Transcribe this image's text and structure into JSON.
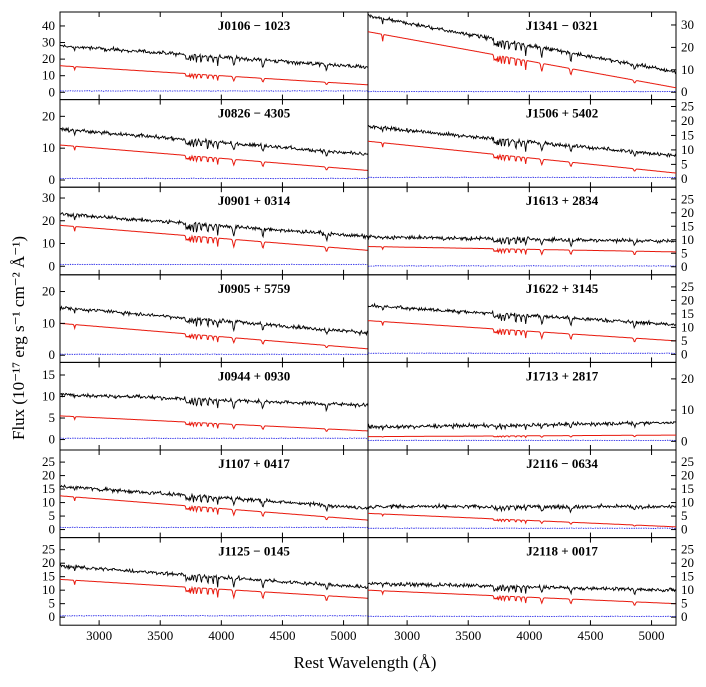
{
  "chart_data": {
    "type": "line",
    "xlabel": "Rest Wavelength (Å)",
    "ylabel": "Flux (10⁻¹⁷ erg s⁻¹ cm⁻² Å⁻¹)",
    "xlim": [
      2680,
      5200
    ],
    "xticks": [
      3000,
      3500,
      4000,
      4500,
      5000
    ],
    "x_tick_labels": [
      "3000",
      "3500",
      "4000",
      "4500",
      "5000"
    ],
    "colors": {
      "observed": "#000000",
      "model": "#e8180c",
      "residual": "#1a1ae6"
    },
    "panels": [
      {
        "id": "J0106 − 1023",
        "column": "left",
        "ylim": [
          -2,
          46
        ],
        "yticks": [
          0,
          10,
          20,
          30,
          40
        ],
        "obs_start": 28,
        "obs_end": 15,
        "model_start": 16,
        "model_end": 4.5,
        "resid": 0.8
      },
      {
        "id": "J1341 − 0321",
        "column": "right",
        "ylim": [
          -1.5,
          34
        ],
        "yticks": [
          0,
          10,
          20,
          30
        ],
        "obs_start": 34,
        "obs_end": 9,
        "model_start": 27,
        "model_end": 2,
        "resid": 0.3
      },
      {
        "id": "J0826 − 4305",
        "column": "left",
        "ylim": [
          -1,
          24
        ],
        "yticks": [
          0,
          10,
          20
        ],
        "obs_start": 16,
        "obs_end": 8,
        "model_start": 11,
        "model_end": 3,
        "resid": 0.5
      },
      {
        "id": "J1506 + 5402",
        "column": "right",
        "ylim": [
          -1.5,
          26
        ],
        "yticks": [
          0,
          5,
          10,
          15,
          20,
          25
        ],
        "obs_start": 18,
        "obs_end": 8,
        "model_start": 13,
        "model_end": 2,
        "resid": 0.5
      },
      {
        "id": "J0901 + 0314",
        "column": "left",
        "ylim": [
          -2,
          33
        ],
        "yticks": [
          0,
          10,
          20,
          30
        ],
        "obs_start": 23,
        "obs_end": 13,
        "model_start": 18,
        "model_end": 7,
        "resid": 0.8
      },
      {
        "id": "J1613 + 2834",
        "column": "right",
        "ylim": [
          -1.5,
          28
        ],
        "yticks": [
          0,
          5,
          10,
          15,
          20,
          25
        ],
        "obs_start": 11,
        "obs_end": 9.5,
        "model_start": 7.5,
        "model_end": 5.5,
        "resid": 0.3
      },
      {
        "id": "J0905 + 5759",
        "column": "left",
        "ylim": [
          -1,
          24
        ],
        "yticks": [
          0,
          10,
          20
        ],
        "obs_start": 15,
        "obs_end": 7,
        "model_start": 10,
        "model_end": 2,
        "resid": 0.3
      },
      {
        "id": "J1622 + 3145",
        "column": "right",
        "ylim": [
          -1.5,
          28
        ],
        "yticks": [
          0,
          5,
          10,
          15,
          20,
          25
        ],
        "obs_start": 18,
        "obs_end": 11,
        "model_start": 12.5,
        "model_end": 5,
        "resid": 0.4
      },
      {
        "id": "J0944 + 0930",
        "column": "left",
        "ylim": [
          -1.5,
          17
        ],
        "yticks": [
          0,
          5,
          10,
          15
        ],
        "obs_start": 10.5,
        "obs_end": 8,
        "model_start": 5.5,
        "model_end": 2,
        "resid": 0.3
      },
      {
        "id": "J1713 + 2817",
        "column": "right",
        "ylim": [
          -1.5,
          24
        ],
        "yticks": [
          0,
          10,
          20
        ],
        "obs_start": 4.5,
        "obs_end": 6,
        "model_start": 1.5,
        "model_end": 2,
        "resid": 0.3
      },
      {
        "id": "J1107 + 0417",
        "column": "left",
        "ylim": [
          -1.5,
          28
        ],
        "yticks": [
          0,
          5,
          10,
          15,
          20,
          25
        ],
        "obs_start": 16,
        "obs_end": 8,
        "model_start": 12.5,
        "model_end": 3.5,
        "resid": 0.8
      },
      {
        "id": "J2116 − 0634",
        "column": "right",
        "ylim": [
          -1.5,
          28
        ],
        "yticks": [
          0,
          5,
          10,
          15,
          20,
          25
        ],
        "obs_start": 8.5,
        "obs_end": 8.5,
        "model_start": 6,
        "model_end": 1,
        "resid": 0.5
      },
      {
        "id": "J1125 − 0145",
        "column": "left",
        "ylim": [
          -1.5,
          28
        ],
        "yticks": [
          0,
          5,
          10,
          15,
          20,
          25
        ],
        "obs_start": 19,
        "obs_end": 11,
        "model_start": 14,
        "model_end": 7,
        "resid": 0.5
      },
      {
        "id": "J2118 + 0017",
        "column": "right",
        "ylim": [
          -1.5,
          28
        ],
        "yticks": [
          0,
          5,
          10,
          15,
          20,
          25
        ],
        "obs_start": 12.5,
        "obs_end": 10,
        "model_start": 10,
        "model_end": 5,
        "resid": 0.3
      }
    ],
    "grid": false,
    "legend": "none"
  }
}
